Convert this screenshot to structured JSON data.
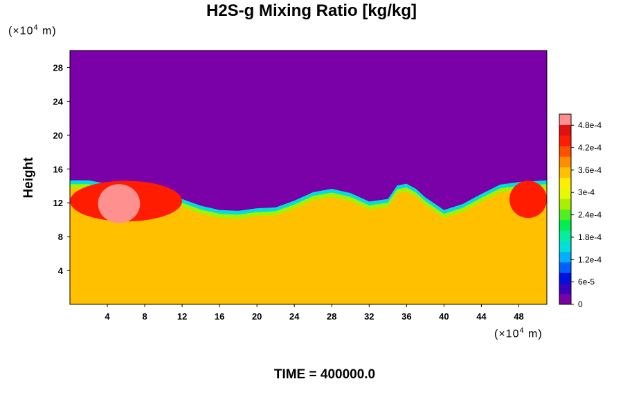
{
  "chart_data": {
    "type": "heatmap",
    "title": "H2S-g Mixing Ratio [kg/kg]",
    "ylabel": "Height",
    "xlabel": "",
    "x_unit_prefix": "(×10",
    "unit_exp": "4",
    "unit_suffix": " m)",
    "xlim": [
      0,
      51
    ],
    "ylim": [
      0,
      30
    ],
    "x_ticks": [
      "4",
      "8",
      "12",
      "16",
      "20",
      "24",
      "28",
      "32",
      "36",
      "40",
      "44",
      "48"
    ],
    "x_tick_values": [
      4,
      8,
      12,
      16,
      20,
      24,
      28,
      32,
      36,
      40,
      44,
      48
    ],
    "y_ticks": [
      "4",
      "8",
      "12",
      "16",
      "20",
      "24",
      "28"
    ],
    "y_tick_values": [
      4,
      8,
      12,
      16,
      20,
      24,
      28
    ],
    "colorbar": {
      "labels": [
        "0",
        "6e-5",
        "1.2e-4",
        "1.8e-4",
        "2.4e-4",
        "3e-4",
        "3.6e-4",
        "4.2e-4",
        "4.8e-4"
      ],
      "label_values": [
        0,
        6e-05,
        0.00012,
        0.00018,
        0.00024,
        0.0003,
        0.00036,
        0.00042,
        0.00048
      ],
      "range": [
        0,
        0.00051
      ],
      "colors": [
        "#7a00a8",
        "#3a00c0",
        "#0010e0",
        "#0060ff",
        "#00b0ff",
        "#00e0d8",
        "#00f0a0",
        "#00ee50",
        "#50f020",
        "#a8f000",
        "#e8f800",
        "#ffee00",
        "#ffc000",
        "#ff8c00",
        "#ff5000",
        "#ff1c00",
        "#e01010",
        "#ff9090"
      ]
    },
    "field": {
      "upper_value": 0,
      "lower_value": 0.00034,
      "interface_height_profile": [
        [
          0,
          15
        ],
        [
          2,
          15
        ],
        [
          4,
          14.6
        ],
        [
          6,
          13.5
        ],
        [
          8,
          13.8
        ],
        [
          10,
          13.6
        ],
        [
          12,
          12.8
        ],
        [
          14,
          12.0
        ],
        [
          16,
          11.5
        ],
        [
          18,
          11.4
        ],
        [
          20,
          11.7
        ],
        [
          22,
          11.8
        ],
        [
          24,
          12.6
        ],
        [
          26,
          13.6
        ],
        [
          28,
          14.0
        ],
        [
          30,
          13.5
        ],
        [
          32,
          12.5
        ],
        [
          34,
          12.8
        ],
        [
          35,
          14.4
        ],
        [
          36,
          14.6
        ],
        [
          37,
          14.0
        ],
        [
          38,
          13.0
        ],
        [
          40,
          11.5
        ],
        [
          42,
          12.2
        ],
        [
          44,
          13.4
        ],
        [
          46,
          14.5
        ],
        [
          48,
          14.8
        ],
        [
          51,
          15
        ]
      ],
      "high_value_regions": [
        {
          "x": [
            0,
            12
          ],
          "y": [
            9.8,
            14.6
          ],
          "value": 0.00045
        },
        {
          "x": [
            3,
            7.5
          ],
          "y": [
            9.6,
            14.2
          ],
          "value": 0.0005
        },
        {
          "x": [
            47,
            51
          ],
          "y": [
            10.2,
            14.6
          ],
          "value": 0.00044
        }
      ]
    }
  },
  "footer": {
    "time_label": "TIME = 400000.0"
  }
}
